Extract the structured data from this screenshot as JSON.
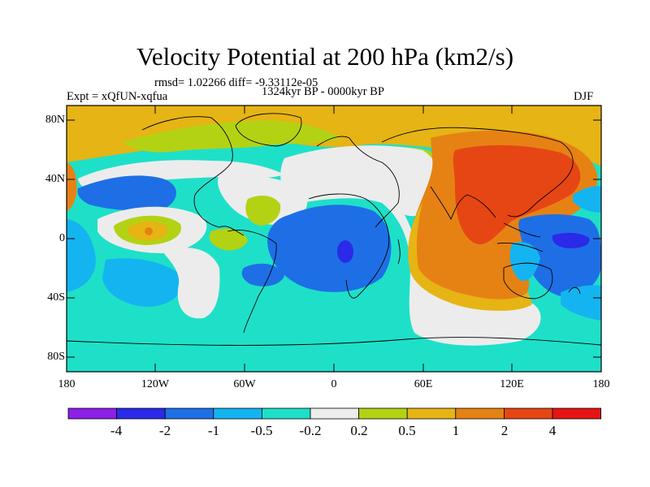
{
  "title": "Velocity Potential at 200 hPa (km2/s)",
  "stats": "rmsd= 1.02266 diff= -9.33112e-05",
  "experiment": "Expt = xQfUN-xqfua",
  "period": "1324kyr BP - 0000kyr BP",
  "season": "DJF",
  "lat_ticks": [
    "80N",
    "40N",
    "0",
    "40S",
    "80S"
  ],
  "lon_ticks": [
    "180",
    "120W",
    "60W",
    "0",
    "60E",
    "120E",
    "180"
  ],
  "colorbar": {
    "colors": [
      "#8c1ee6",
      "#2a2ae8",
      "#1e6fe6",
      "#14b4f0",
      "#1ee0c8",
      "#ececec",
      "#b4d214",
      "#e6b414",
      "#e68214",
      "#e64614",
      "#e61414"
    ],
    "labels": [
      "-4",
      "-2",
      "-1",
      "-0.5",
      "-0.2",
      "0.2",
      "0.5",
      "1",
      "2",
      "4"
    ]
  }
}
